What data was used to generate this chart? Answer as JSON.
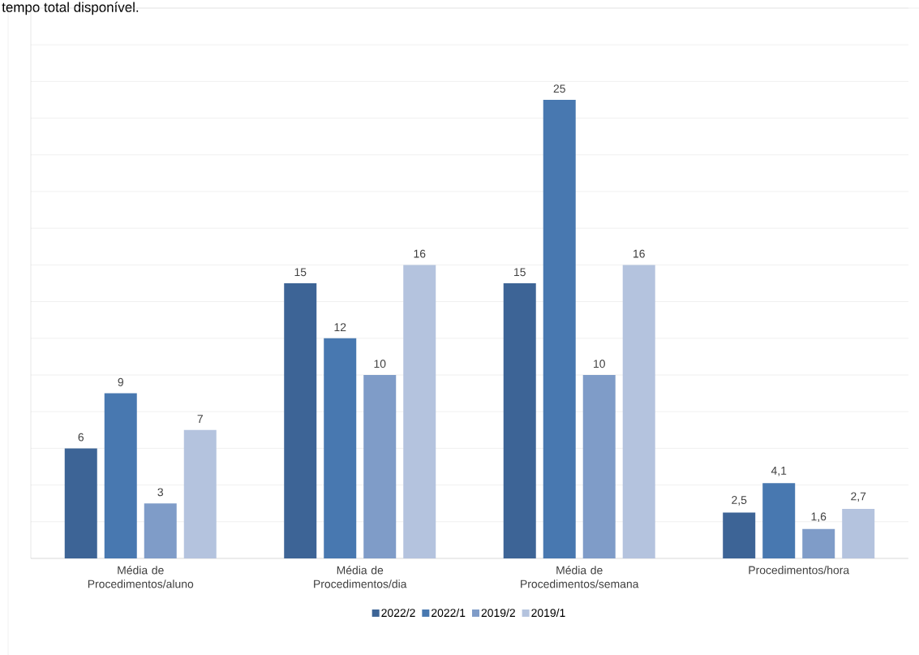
{
  "chart_data": {
    "type": "bar",
    "annotations": [
      "tempo total disponível."
    ],
    "categories": [
      "Média de Procedimentos/aluno",
      "Média de Procedimentos/dia",
      "Média de Procedimentos/semana",
      "Procedimentos/hora"
    ],
    "series": [
      {
        "name": "2022/2",
        "color": "#3d6496",
        "values": [
          6,
          15,
          15,
          2.5
        ],
        "value_labels": [
          "6",
          "15",
          "15",
          "2,5"
        ]
      },
      {
        "name": "2022/1",
        "color": "#4878b0",
        "values": [
          9,
          12,
          25,
          4.1
        ],
        "value_labels": [
          "9",
          "12",
          "25",
          "4,1"
        ]
      },
      {
        "name": "2019/2",
        "color": "#7f9cc8",
        "values": [
          3,
          10,
          10,
          1.6
        ],
        "value_labels": [
          "3",
          "10",
          "10",
          "1,6"
        ]
      },
      {
        "name": "2019/1",
        "color": "#b4c3de",
        "values": [
          7,
          16,
          16,
          2.7
        ],
        "value_labels": [
          "7",
          "16",
          "16",
          "2,7"
        ]
      }
    ],
    "ylim": [
      0,
      30
    ],
    "grid": "y",
    "legend": "bottom",
    "tick_labels": "x"
  }
}
